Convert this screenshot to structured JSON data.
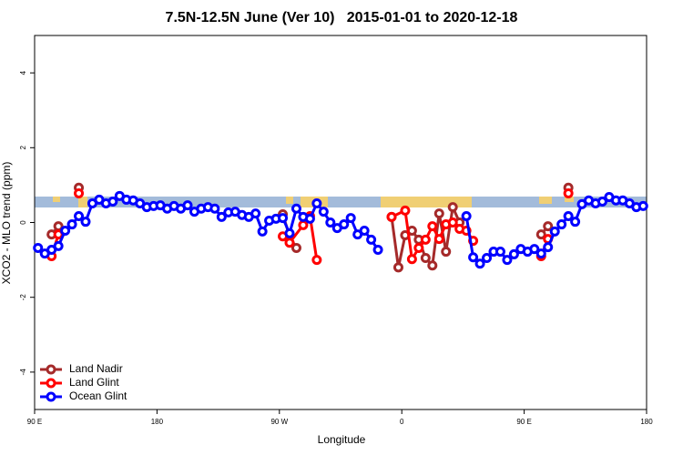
{
  "chart_data": {
    "type": "line",
    "title": "7.5N-12.5N June (Ver 10)   2015-01-01 to 2020-12-18",
    "xlabel": "Longitude",
    "ylabel": "XCO2 - MLO trend (ppm)",
    "xlim": [
      -270,
      180
    ],
    "xticks": [
      {
        "value": -270,
        "label": "90 E"
      },
      {
        "value": -180,
        "label": "180"
      },
      {
        "value": -90,
        "label": "90 W"
      },
      0,
      {
        "value": 90,
        "label": "90 E"
      },
      180
    ],
    "ylim": [
      -5,
      5
    ],
    "yticks": [
      -4,
      -2,
      0,
      2,
      4
    ],
    "legend": "bottom-left",
    "series": [
      {
        "name": "Land Nadir",
        "color": "#a52a2a",
        "x": [
          -257.5,
          -252.5,
          -247.5,
          -237.5,
          -232.5,
          -87.5,
          -82.5,
          -77.5,
          -72.5,
          -7.5,
          -2.5,
          2.5,
          7.5,
          12.5,
          17.5,
          22.5,
          27.5,
          32.5,
          37.5,
          42.5,
          47.5,
          102.5,
          107.5,
          112.5,
          122.5
        ],
        "values": [
          -0.32,
          -0.1,
          null,
          0.93,
          null,
          0.22,
          -0.37,
          -0.68,
          null,
          0.15,
          -1.2,
          -0.34,
          -0.22,
          -0.46,
          -0.95,
          -1.15,
          0.24,
          -0.78,
          0.41,
          0,
          null,
          -0.32,
          -0.1,
          null,
          0.93
        ]
      },
      {
        "name": "Land Glint",
        "color": "#ff0000",
        "x": [
          -257.5,
          -252.5,
          -247.5,
          -237.5,
          -232.5,
          -87.5,
          -82.5,
          -72.5,
          -67.5,
          -62.5,
          -57.5,
          -7.5,
          2.5,
          7.5,
          12.5,
          17.5,
          22.5,
          27.5,
          32.5,
          37.5,
          42.5,
          47.5,
          52.5,
          57.5,
          102.5,
          107.5,
          112.5,
          122.5
        ],
        "values": [
          -0.9,
          -0.32,
          null,
          0.78,
          null,
          -0.37,
          -0.54,
          -0.07,
          0.17,
          -1.0,
          null,
          0.15,
          0.32,
          -0.98,
          -0.68,
          -0.46,
          -0.1,
          -0.44,
          -0.05,
          0,
          -0.17,
          -0.22,
          -0.49,
          null,
          -0.9,
          -0.44,
          null,
          0.78
        ]
      },
      {
        "name": "Ocean Glint",
        "color": "#0000ff",
        "x": [
          -267.5,
          -262.5,
          -257.5,
          -252.5,
          -247.5,
          -242.5,
          -237.5,
          -232.5,
          -227.5,
          -222.5,
          -217.5,
          -212.5,
          -207.5,
          -202.5,
          -197.5,
          -192.5,
          -187.5,
          -182.5,
          -177.5,
          -172.5,
          -167.5,
          -162.5,
          -157.5,
          -152.5,
          -147.5,
          -142.5,
          -137.5,
          -132.5,
          -127.5,
          -122.5,
          -117.5,
          -112.5,
          -107.5,
          -102.5,
          -97.5,
          -92.5,
          -87.5,
          -82.5,
          -77.5,
          -72.5,
          -67.5,
          -62.5,
          -57.5,
          -52.5,
          -47.5,
          -42.5,
          -37.5,
          -32.5,
          -27.5,
          -22.5,
          -17.5,
          -12.5,
          47.5,
          52.5,
          57.5,
          62.5,
          67.5,
          72.5,
          77.5,
          82.5,
          87.5,
          92.5,
          97.5,
          102.5,
          107.5,
          112.5,
          117.5,
          122.5,
          127.5,
          132.5,
          137.5,
          142.5,
          147.5,
          152.5,
          157.5,
          162.5,
          167.5,
          172.5,
          177.5
        ],
        "values": [
          -0.68,
          -0.83,
          -0.73,
          -0.63,
          -0.22,
          -0.05,
          0.17,
          0.02,
          0.51,
          0.61,
          0.51,
          0.56,
          0.71,
          0.61,
          0.59,
          0.51,
          0.41,
          0.44,
          0.46,
          0.37,
          0.44,
          0.37,
          0.46,
          0.29,
          0.37,
          0.41,
          0.37,
          0.15,
          0.27,
          0.29,
          0.2,
          0.15,
          0.24,
          -0.24,
          0.05,
          0.1,
          0.12,
          -0.29,
          0.37,
          0.15,
          0.1,
          0.51,
          0.29,
          0,
          -0.15,
          -0.05,
          0.12,
          -0.32,
          -0.22,
          -0.46,
          -0.73,
          null,
          0.17,
          -0.93,
          -1.1,
          -0.95,
          -0.78,
          -0.78,
          -1.0,
          -0.85,
          -0.71,
          -0.78,
          -0.71,
          -0.83,
          -0.66,
          -0.24,
          -0.05,
          0.17,
          0.02,
          0.49,
          0.59,
          0.51,
          0.56,
          0.68,
          0.59,
          0.59,
          0.51,
          0.41,
          0.44
        ]
      }
    ]
  }
}
